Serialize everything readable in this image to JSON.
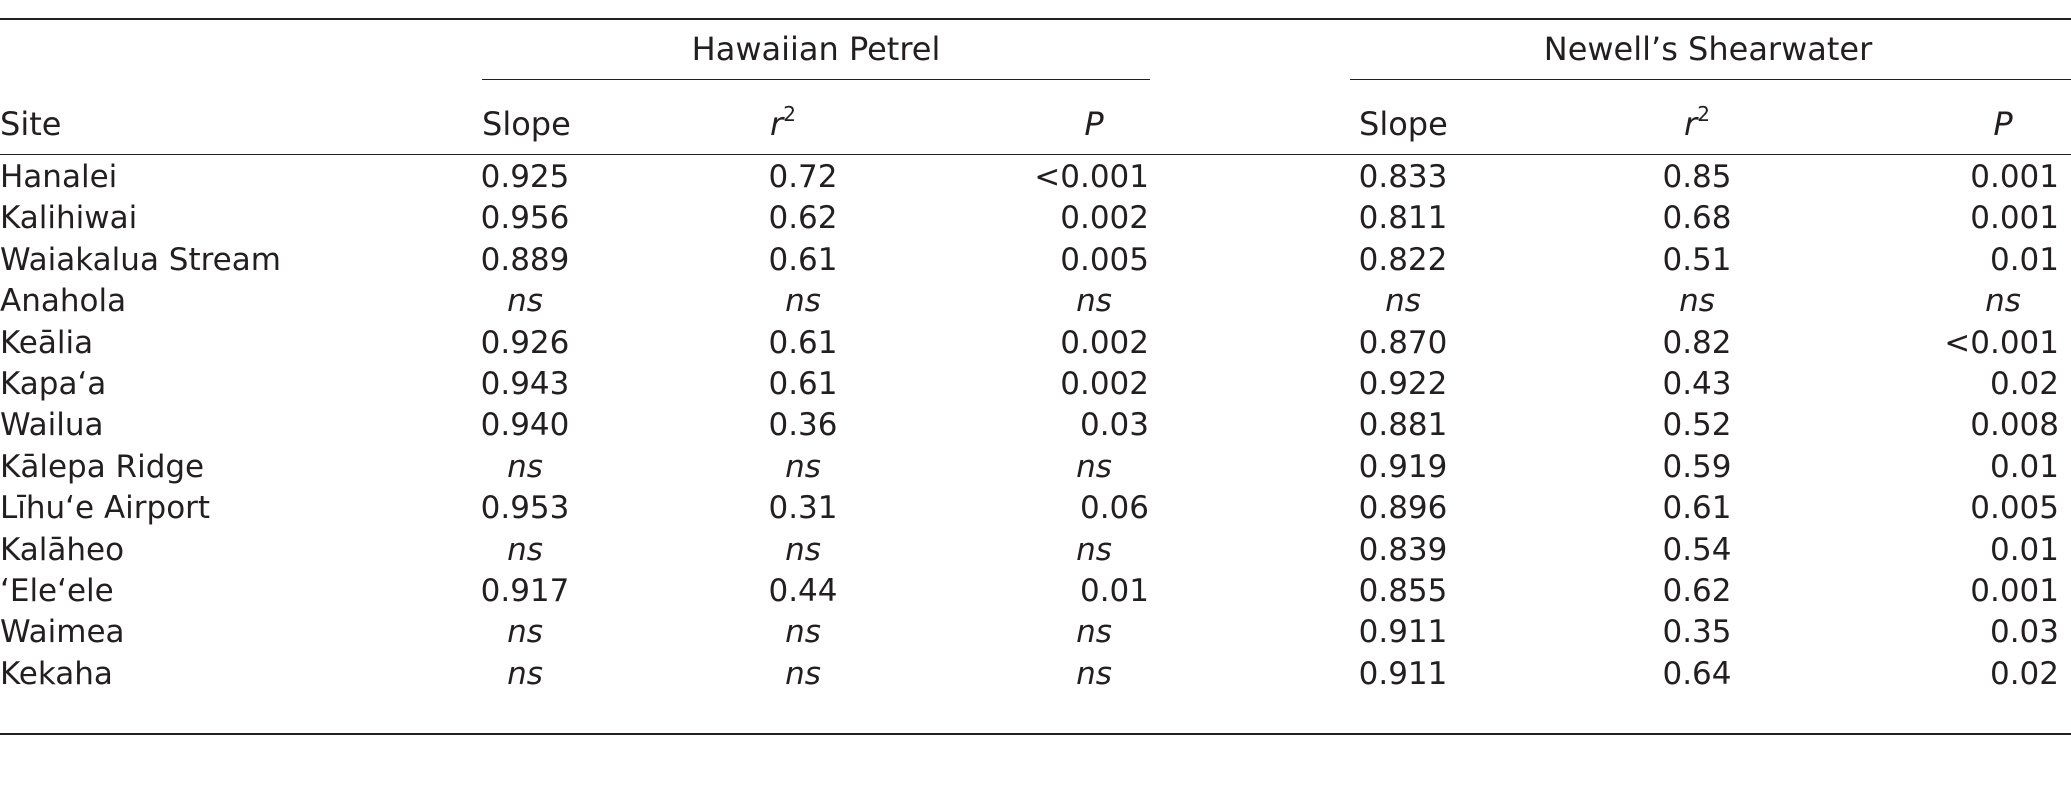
{
  "table": {
    "groups": [
      {
        "label": "Hawaiian Petrel"
      },
      {
        "label": "Newell’s Shearwater"
      }
    ],
    "columns": {
      "site": "Site",
      "hp_slope": "Slope",
      "hp_r2_base": "r",
      "hp_r2_exp": "2",
      "hp_p": "P",
      "ns_slope": "Slope",
      "ns_r2_base": "r",
      "ns_r2_exp": "2",
      "ns_p": "P"
    },
    "rows": [
      {
        "site": "Hanalei",
        "hp_slope": "0.925",
        "hp_r2": "0.72",
        "hp_p": "<0.001",
        "ns_slope": "0.833",
        "ns_r2": "0.85",
        "ns_p": "0.001"
      },
      {
        "site": "Kalihiwai",
        "hp_slope": "0.956",
        "hp_r2": "0.62",
        "hp_p": "0.002",
        "ns_slope": "0.811",
        "ns_r2": "0.68",
        "ns_p": "0.001"
      },
      {
        "site": "Waiakalua Stream",
        "hp_slope": "0.889",
        "hp_r2": "0.61",
        "hp_p": "0.005",
        "ns_slope": "0.822",
        "ns_r2": "0.51",
        "ns_p": "0.01"
      },
      {
        "site": "Anahola",
        "hp_slope": "ns",
        "hp_r2": "ns",
        "hp_p": "ns",
        "ns_slope": "ns",
        "ns_r2": "ns",
        "ns_p": "ns"
      },
      {
        "site": "Keālia",
        "hp_slope": "0.926",
        "hp_r2": "0.61",
        "hp_p": "0.002",
        "ns_slope": "0.870",
        "ns_r2": "0.82",
        "ns_p": "<0.001"
      },
      {
        "site": "Kapaʻa",
        "hp_slope": "0.943",
        "hp_r2": "0.61",
        "hp_p": "0.002",
        "ns_slope": "0.922",
        "ns_r2": "0.43",
        "ns_p": "0.02"
      },
      {
        "site": "Wailua",
        "hp_slope": "0.940",
        "hp_r2": "0.36",
        "hp_p": "0.03",
        "ns_slope": "0.881",
        "ns_r2": "0.52",
        "ns_p": "0.008"
      },
      {
        "site": "Kālepa Ridge",
        "hp_slope": "ns",
        "hp_r2": "ns",
        "hp_p": "ns",
        "ns_slope": "0.919",
        "ns_r2": "0.59",
        "ns_p": "0.01"
      },
      {
        "site": "Līhuʻe Airport",
        "hp_slope": "0.953",
        "hp_r2": "0.31",
        "hp_p": "0.06",
        "ns_slope": "0.896",
        "ns_r2": "0.61",
        "ns_p": "0.005"
      },
      {
        "site": "Kalāheo",
        "hp_slope": "ns",
        "hp_r2": "ns",
        "hp_p": "ns",
        "ns_slope": "0.839",
        "ns_r2": "0.54",
        "ns_p": "0.01"
      },
      {
        "site": "ʻEleʻele",
        "hp_slope": "0.917",
        "hp_r2": "0.44",
        "hp_p": "0.01",
        "ns_slope": "0.855",
        "ns_r2": "0.62",
        "ns_p": "0.001"
      },
      {
        "site": "Waimea",
        "hp_slope": "ns",
        "hp_r2": "ns",
        "hp_p": "ns",
        "ns_slope": "0.911",
        "ns_r2": "0.35",
        "ns_p": "0.03"
      },
      {
        "site": "Kekaha",
        "hp_slope": "ns",
        "hp_r2": "ns",
        "hp_p": "ns",
        "ns_slope": "0.911",
        "ns_r2": "0.64",
        "ns_p": "0.02"
      }
    ]
  }
}
